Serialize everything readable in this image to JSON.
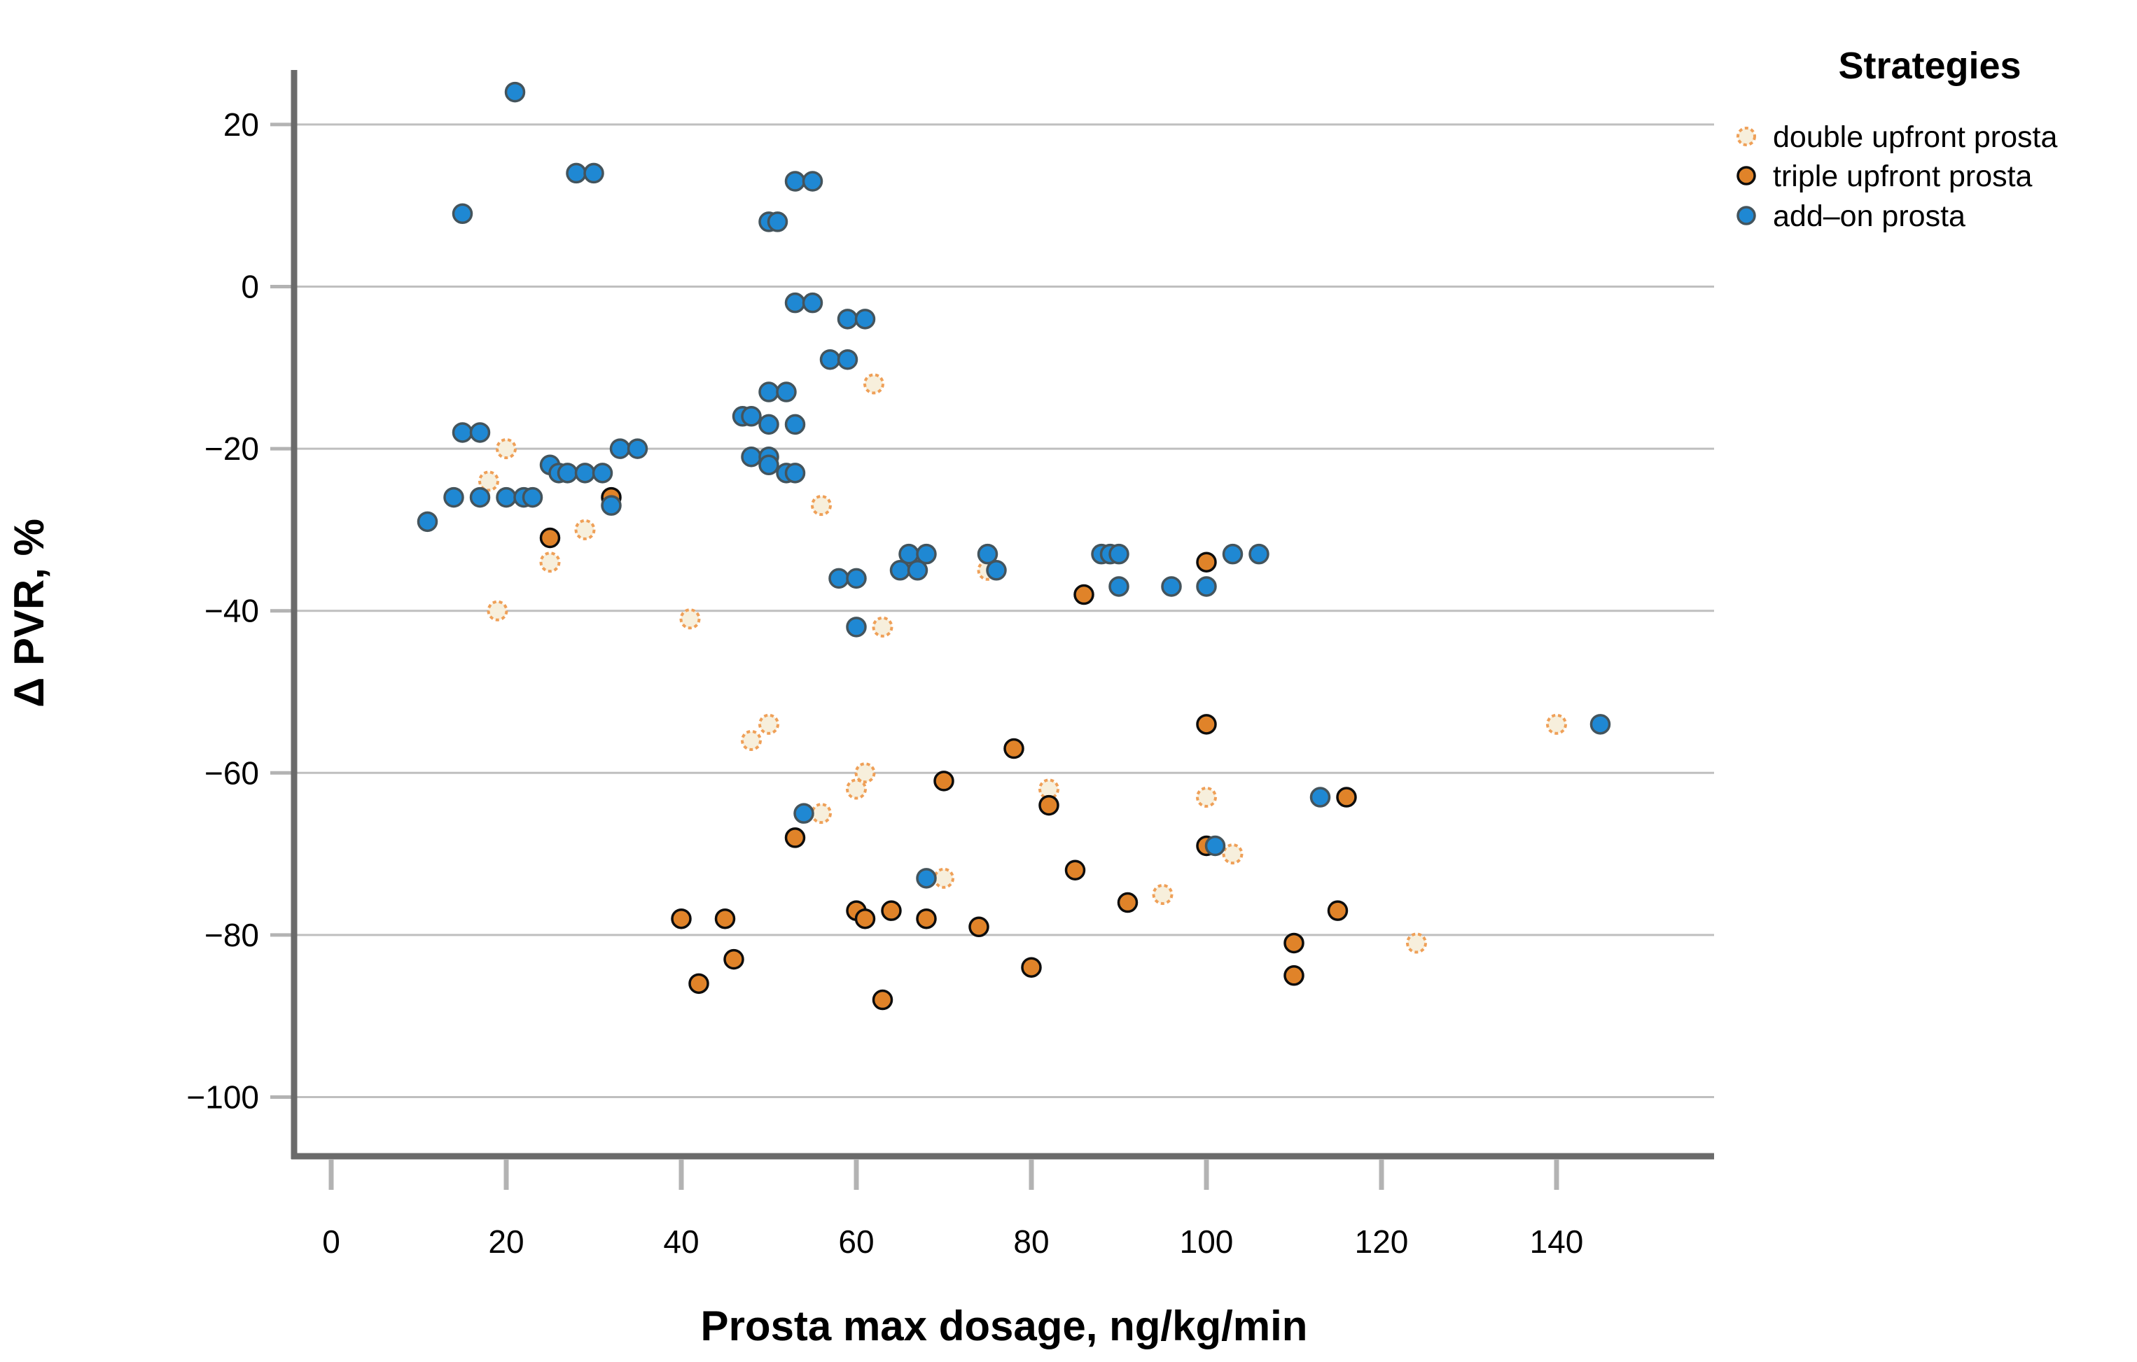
{
  "chart_data": {
    "type": "scatter",
    "title": "",
    "xlabel": "Prosta max dosage, ng/kg/min",
    "ylabel": "Δ PVR, %",
    "x_ticks": [
      0,
      20,
      40,
      60,
      80,
      100,
      120,
      140
    ],
    "y_ticks": [
      20,
      0,
      -20,
      -40,
      -60,
      -80,
      -100
    ],
    "xlim": [
      -4.24,
      158.0
    ],
    "ylim": [
      -107.3,
      26.73
    ],
    "grid": "horizontal-only",
    "legend": {
      "title": "Strategies",
      "position": "top-right"
    },
    "series": [
      {
        "name": "double upfront prosta",
        "marker": "open-dashed-circle",
        "fill": "#f7efdc",
        "stroke": "#efa058",
        "points": [
          [
            62,
            -12
          ],
          [
            20,
            -20
          ],
          [
            18,
            -24
          ],
          [
            56,
            -27
          ],
          [
            29,
            -30
          ],
          [
            25,
            -34
          ],
          [
            75,
            -35
          ],
          [
            19,
            -40
          ],
          [
            41,
            -41
          ],
          [
            63,
            -42
          ],
          [
            50,
            -54
          ],
          [
            140,
            -54
          ],
          [
            48,
            -56
          ],
          [
            61,
            -60
          ],
          [
            60,
            -62
          ],
          [
            82,
            -62
          ],
          [
            100,
            -63
          ],
          [
            56,
            -65
          ],
          [
            103,
            -70
          ],
          [
            70,
            -73
          ],
          [
            95,
            -75
          ],
          [
            124,
            -81
          ]
        ]
      },
      {
        "name": "triple upfront prosta",
        "marker": "filled-circle",
        "fill": "#e08329",
        "stroke": "#0d0d0d",
        "points": [
          [
            32,
            -26
          ],
          [
            25,
            -31
          ],
          [
            100,
            -34
          ],
          [
            86,
            -38
          ],
          [
            100,
            -54
          ],
          [
            78,
            -57
          ],
          [
            70,
            -61
          ],
          [
            82,
            -64
          ],
          [
            116,
            -63
          ],
          [
            53,
            -68
          ],
          [
            100,
            -69
          ],
          [
            85,
            -72
          ],
          [
            91,
            -76
          ],
          [
            115,
            -77
          ],
          [
            40,
            -78
          ],
          [
            45,
            -78
          ],
          [
            60,
            -77
          ],
          [
            61,
            -78
          ],
          [
            64,
            -77
          ],
          [
            68,
            -78
          ],
          [
            74,
            -79
          ],
          [
            110,
            -81
          ],
          [
            46,
            -83
          ],
          [
            80,
            -84
          ],
          [
            42,
            -86
          ],
          [
            110,
            -85
          ],
          [
            63,
            -88
          ]
        ]
      },
      {
        "name": "add–on prosta",
        "marker": "filled-circle",
        "fill": "#1f88d3",
        "stroke": "#44545c",
        "points": [
          [
            21,
            24
          ],
          [
            28,
            14
          ],
          [
            30,
            14
          ],
          [
            15,
            9
          ],
          [
            53,
            13
          ],
          [
            55,
            13
          ],
          [
            50,
            8
          ],
          [
            51,
            8
          ],
          [
            53,
            -2
          ],
          [
            55,
            -2
          ],
          [
            59,
            -4
          ],
          [
            61,
            -4
          ],
          [
            57,
            -9
          ],
          [
            59,
            -9
          ],
          [
            50,
            -13
          ],
          [
            52,
            -13
          ],
          [
            47,
            -16
          ],
          [
            48,
            -16
          ],
          [
            50,
            -17
          ],
          [
            53,
            -17
          ],
          [
            15,
            -18
          ],
          [
            17,
            -18
          ],
          [
            33,
            -20
          ],
          [
            35,
            -20
          ],
          [
            48,
            -21
          ],
          [
            50,
            -21
          ],
          [
            50,
            -22
          ],
          [
            52,
            -23
          ],
          [
            53,
            -23
          ],
          [
            25,
            -22
          ],
          [
            26,
            -23
          ],
          [
            27,
            -23
          ],
          [
            29,
            -23
          ],
          [
            31,
            -23
          ],
          [
            14,
            -26
          ],
          [
            17,
            -26
          ],
          [
            20,
            -26
          ],
          [
            22,
            -26
          ],
          [
            23,
            -26
          ],
          [
            32,
            -27
          ],
          [
            11,
            -29
          ],
          [
            66,
            -33
          ],
          [
            68,
            -33
          ],
          [
            65,
            -35
          ],
          [
            67,
            -35
          ],
          [
            75,
            -33
          ],
          [
            76,
            -35
          ],
          [
            88,
            -33
          ],
          [
            89,
            -33
          ],
          [
            90,
            -33
          ],
          [
            103,
            -33
          ],
          [
            106,
            -33
          ],
          [
            58,
            -36
          ],
          [
            60,
            -36
          ],
          [
            90,
            -37
          ],
          [
            96,
            -37
          ],
          [
            100,
            -37
          ],
          [
            60,
            -42
          ],
          [
            54,
            -65
          ],
          [
            68,
            -73
          ],
          [
            101,
            -69
          ],
          [
            113,
            -63
          ],
          [
            145,
            -54
          ]
        ]
      }
    ],
    "colors": {
      "gridline": "#bfbfbf",
      "spine": "#6b6b6b",
      "tick": "#b3b3b3",
      "text": "#000000"
    }
  }
}
